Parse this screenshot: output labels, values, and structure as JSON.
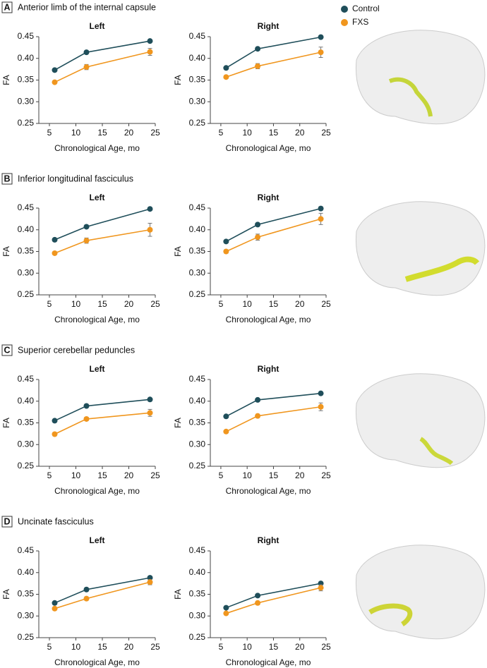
{
  "panels": [
    {
      "label": "A",
      "title": "Anterior limb of the internal capsule"
    },
    {
      "label": "B",
      "title": "Inferior longitudinal fasciculus"
    },
    {
      "label": "C",
      "title": "Superior cerebellar peduncles"
    },
    {
      "label": "D",
      "title": "Uncinate fasciculus"
    }
  ],
  "chart_data": [
    {
      "type": "line",
      "title": "Left",
      "x_label": "Chronological Age, mo",
      "y_label": "FA",
      "x": [
        6,
        12,
        24
      ],
      "xlim": [
        3,
        25
      ],
      "xticks": [
        5,
        10,
        15,
        20,
        25
      ],
      "ylim": [
        0.25,
        0.45
      ],
      "yticks": [
        0.25,
        {
          "value": 0.3,
          "label": "0.30"
        },
        0.35,
        {
          "value": 0.4,
          "label": "0.40"
        },
        0.45
      ],
      "series": [
        {
          "name": "Control",
          "color": "#1f4e5a",
          "values": [
            0.373,
            0.414,
            0.44
          ],
          "errors": [
            0.003,
            0.003,
            0.003
          ]
        },
        {
          "name": "FXS",
          "color": "#f0961e",
          "values": [
            0.345,
            0.38,
            0.415
          ],
          "errors": [
            0.003,
            0.006,
            0.008
          ]
        }
      ]
    },
    {
      "type": "line",
      "title": "Right",
      "x_label": "Chronological Age, mo",
      "y_label": "FA",
      "x": [
        6,
        12,
        24
      ],
      "xlim": [
        3,
        25
      ],
      "xticks": [
        5,
        10,
        15,
        20,
        25
      ],
      "ylim": [
        0.25,
        0.45
      ],
      "yticks": [
        0.25,
        {
          "value": 0.3,
          "label": "0.30"
        },
        0.35,
        {
          "value": 0.4,
          "label": "0.40"
        },
        0.45
      ],
      "series": [
        {
          "color": "#1f4e5a",
          "values": [
            0.378,
            0.422,
            0.449
          ],
          "errors": [
            0.002,
            0.003,
            0.003
          ]
        },
        {
          "color": "#f0961e",
          "values": [
            0.357,
            0.382,
            0.414
          ],
          "errors": [
            0.003,
            0.006,
            0.012
          ]
        }
      ]
    },
    {
      "type": "line",
      "title": "Left",
      "x_label": "Chronological Age, mo",
      "y_label": "FA",
      "x": [
        6,
        12,
        24
      ],
      "xlim": [
        3,
        25
      ],
      "xticks": [
        5,
        10,
        15,
        20,
        25
      ],
      "ylim": [
        0.25,
        0.45
      ],
      "yticks": [
        0.25,
        {
          "value": 0.3,
          "label": "0.30"
        },
        0.35,
        {
          "value": 0.4,
          "label": "0.40"
        },
        0.45
      ],
      "series": [
        {
          "color": "#1f4e5a",
          "values": [
            0.377,
            0.407,
            0.448
          ],
          "errors": [
            0.002,
            0.003,
            0.003
          ]
        },
        {
          "color": "#f0961e",
          "values": [
            0.346,
            0.375,
            0.4
          ],
          "errors": [
            0.003,
            0.006,
            0.015
          ]
        }
      ]
    },
    {
      "type": "line",
      "title": "Right",
      "x_label": "Chronological Age, mo",
      "y_label": "FA",
      "x": [
        6,
        12,
        24
      ],
      "xlim": [
        3,
        25
      ],
      "xticks": [
        5,
        10,
        15,
        20,
        25
      ],
      "ylim": [
        0.25,
        0.45
      ],
      "yticks": [
        0.25,
        {
          "value": 0.3,
          "label": "0.30"
        },
        0.35,
        {
          "value": 0.4,
          "label": "0.40"
        },
        0.45
      ],
      "series": [
        {
          "color": "#1f4e5a",
          "values": [
            0.373,
            0.412,
            0.449
          ],
          "errors": [
            0.002,
            0.003,
            0.004
          ]
        },
        {
          "color": "#f0961e",
          "values": [
            0.35,
            0.383,
            0.425
          ],
          "errors": [
            0.004,
            0.007,
            0.013
          ]
        }
      ]
    },
    {
      "type": "line",
      "title": "Left",
      "x_label": "Chronological Age, mo",
      "y_label": "FA",
      "x": [
        6,
        12,
        24
      ],
      "xlim": [
        3,
        25
      ],
      "xticks": [
        5,
        10,
        15,
        20,
        25
      ],
      "ylim": [
        0.25,
        0.45
      ],
      "yticks": [
        0.25,
        {
          "value": 0.3,
          "label": "0.30"
        },
        0.35,
        {
          "value": 0.4,
          "label": "0.40"
        },
        0.45
      ],
      "series": [
        {
          "color": "#1f4e5a",
          "values": [
            0.355,
            0.389,
            0.404
          ],
          "errors": [
            0.002,
            0.002,
            0.003
          ]
        },
        {
          "color": "#f0961e",
          "values": [
            0.324,
            0.359,
            0.373
          ],
          "errors": [
            0.004,
            0.004,
            0.008
          ]
        }
      ]
    },
    {
      "type": "line",
      "title": "Right",
      "x_label": "Chronological Age, mo",
      "y_label": "FA",
      "x": [
        6,
        12,
        24
      ],
      "xlim": [
        3,
        25
      ],
      "xticks": [
        5,
        10,
        15,
        20,
        25
      ],
      "ylim": [
        0.25,
        0.45
      ],
      "yticks": [
        0.25,
        {
          "value": 0.3,
          "label": "0.30"
        },
        0.35,
        {
          "value": 0.4,
          "label": "0.40"
        },
        0.45
      ],
      "series": [
        {
          "color": "#1f4e5a",
          "values": [
            0.365,
            0.403,
            0.418
          ],
          "errors": [
            0.002,
            0.002,
            0.003
          ]
        },
        {
          "color": "#f0961e",
          "values": [
            0.33,
            0.366,
            0.387
          ],
          "errors": [
            0.003,
            0.004,
            0.009
          ]
        }
      ]
    },
    {
      "type": "line",
      "title": "Left",
      "x_label": "Chronological Age, mo",
      "y_label": "FA",
      "x": [
        6,
        12,
        24
      ],
      "xlim": [
        3,
        25
      ],
      "xticks": [
        5,
        10,
        15,
        20,
        25
      ],
      "ylim": [
        0.25,
        0.45
      ],
      "yticks": [
        0.25,
        {
          "value": 0.3,
          "label": "0.30"
        },
        0.35,
        {
          "value": 0.4,
          "label": "0.40"
        },
        0.45
      ],
      "series": [
        {
          "color": "#1f4e5a",
          "values": [
            0.33,
            0.361,
            0.388
          ],
          "errors": [
            0.002,
            0.002,
            0.003
          ]
        },
        {
          "color": "#f0961e",
          "values": [
            0.317,
            0.34,
            0.378
          ],
          "errors": [
            0.003,
            0.004,
            0.006
          ]
        }
      ]
    },
    {
      "type": "line",
      "title": "Right",
      "x_label": "Chronological Age, mo",
      "y_label": "FA",
      "x": [
        6,
        12,
        24
      ],
      "xlim": [
        3,
        25
      ],
      "xticks": [
        5,
        10,
        15,
        20,
        25
      ],
      "ylim": [
        0.25,
        0.45
      ],
      "yticks": [
        0.25,
        {
          "value": 0.3,
          "label": "0.30"
        },
        0.35,
        {
          "value": 0.4,
          "label": "0.40"
        },
        0.45
      ],
      "series": [
        {
          "color": "#1f4e5a",
          "values": [
            0.319,
            0.347,
            0.375
          ],
          "errors": [
            0.002,
            0.002,
            0.003
          ]
        },
        {
          "color": "#f0961e",
          "values": [
            0.306,
            0.33,
            0.365
          ],
          "errors": [
            0.003,
            0.004,
            0.007
          ]
        }
      ]
    }
  ]
}
